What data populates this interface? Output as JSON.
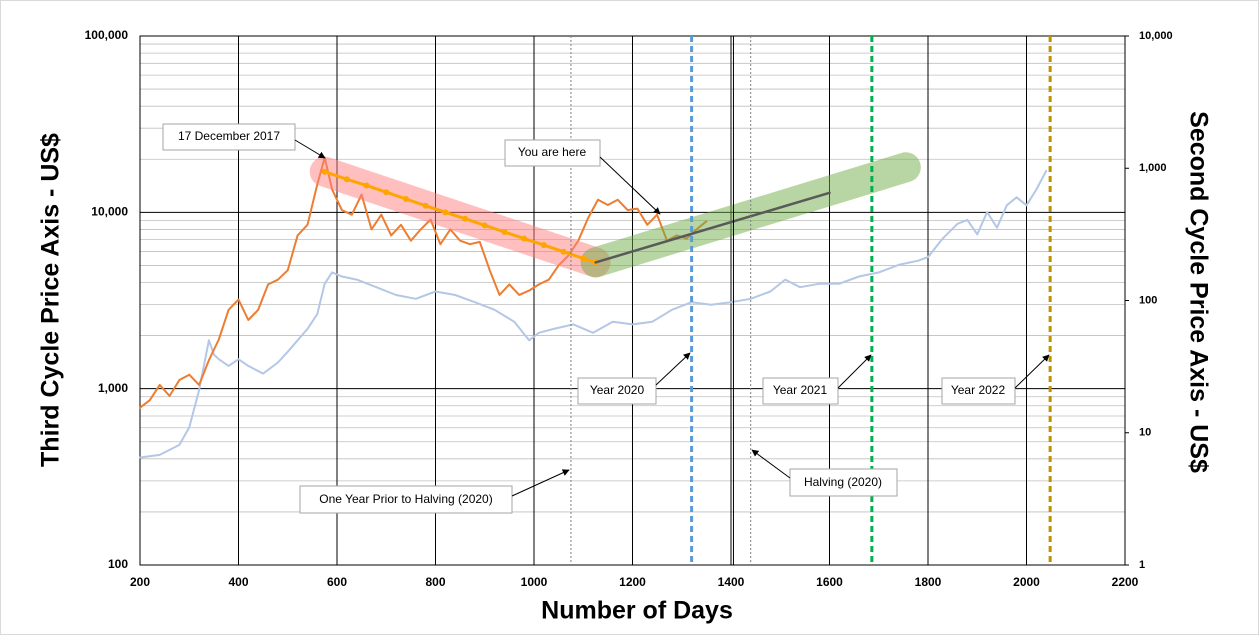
{
  "chart_data": {
    "type": "line",
    "xlabel": "Number of Days",
    "ylabel": "Third Cycle Price Axis - US$",
    "y2label": "Second Cycle Price Axis - US$",
    "xlim": [
      200,
      2200
    ],
    "xticks": [
      200,
      400,
      600,
      800,
      1000,
      1200,
      1400,
      1600,
      1800,
      2000,
      2200
    ],
    "ylim": [
      100,
      100000
    ],
    "yticks": [
      100,
      {
        "value": 1000,
        "label": "1,000"
      },
      {
        "value": 10000,
        "label": "10,000"
      },
      {
        "value": 100000,
        "label": "100,000"
      }
    ],
    "y2lim": [
      1,
      10000
    ],
    "y2ticks": [
      1,
      10,
      100,
      {
        "value": 1000,
        "label": "1,000"
      },
      {
        "value": 10000,
        "label": "10,000"
      }
    ],
    "yscale": "log",
    "y2scale": "log",
    "grid": true,
    "series": [
      {
        "color": "#b4c7e7",
        "axis": "y2",
        "x": [
          200,
          240,
          280,
          300,
          320,
          340,
          350,
          360,
          380,
          400,
          420,
          450,
          480,
          500,
          520,
          540,
          560,
          575,
          590,
          610,
          640,
          680,
          720,
          760,
          800,
          840,
          880,
          920,
          960,
          990,
          1010,
          1040,
          1080,
          1120,
          1160,
          1200,
          1240,
          1280,
          1320,
          1360,
          1400,
          1440,
          1480,
          1510,
          1540,
          1580,
          1620,
          1660,
          1700,
          1740,
          1780,
          1800,
          1830,
          1860,
          1880,
          1900,
          1920,
          1940,
          1960,
          1980,
          2000,
          2020,
          2040
        ],
        "values": [
          6.5,
          6.8,
          8.1,
          11,
          21,
          50,
          39,
          36,
          32,
          36,
          32,
          28,
          34,
          41,
          50,
          61,
          79,
          134,
          163,
          152,
          144,
          126,
          110,
          103,
          117,
          110,
          97,
          85,
          69,
          50,
          57,
          61,
          66,
          57,
          69,
          66,
          69,
          85,
          97,
          93,
          97,
          103,
          117,
          144,
          126,
          134,
          134,
          152,
          163,
          186,
          200,
          213,
          295,
          380,
          407,
          316,
          467,
          355,
          525,
          603,
          525,
          690,
          955
        ]
      },
      {
        "color": "#ed7d31",
        "x": [
          200,
          220,
          240,
          260,
          280,
          300,
          320,
          340,
          360,
          380,
          400,
          420,
          440,
          460,
          480,
          500,
          520,
          540,
          560,
          575,
          590,
          610,
          630,
          650,
          670,
          690,
          710,
          730,
          750,
          770,
          790,
          810,
          830,
          850,
          870,
          890,
          910,
          930,
          950,
          970,
          990,
          1010,
          1030,
          1050,
          1070,
          1090,
          1110,
          1130,
          1150,
          1170,
          1190,
          1210,
          1230,
          1250,
          1270,
          1290,
          1310,
          1330,
          1350
        ],
        "values": [
          780,
          860,
          1050,
          910,
          1120,
          1200,
          1050,
          1450,
          1900,
          2800,
          3200,
          2450,
          2800,
          3900,
          4150,
          4700,
          7400,
          8500,
          14400,
          20400,
          13500,
          10300,
          9700,
          12600,
          8000,
          9700,
          7400,
          8500,
          6900,
          8000,
          9100,
          6600,
          8000,
          6900,
          6600,
          6800,
          4700,
          3400,
          3900,
          3400,
          3600,
          3900,
          4150,
          5000,
          5700,
          6900,
          9300,
          11800,
          11000,
          11800,
          10300,
          10500,
          8500,
          9700,
          6900,
          7400,
          7100,
          8000,
          8900
        ]
      },
      {
        "color": "#ff8080",
        "line_width": 30,
        "opacity": 0.5,
        "x": [
          575,
          1125
        ],
        "values": [
          17000,
          5200
        ]
      },
      {
        "color": "#70ad47",
        "line_width": 30,
        "opacity": 0.5,
        "x": [
          1125,
          1755
        ],
        "values": [
          5200,
          18000
        ]
      },
      {
        "color": "#ffa500",
        "line_width": 3,
        "markers": true,
        "x": [
          575,
          620,
          660,
          700,
          740,
          780,
          820,
          860,
          900,
          940,
          980,
          1020,
          1060,
          1100,
          1125
        ],
        "values": [
          17000,
          15400,
          14200,
          13000,
          11900,
          10900,
          10000,
          9200,
          8440,
          7740,
          7100,
          6520,
          5980,
          5480,
          5200
        ]
      },
      {
        "color": "#595959",
        "line_width": 2.5,
        "x": [
          1125,
          1600
        ],
        "values": [
          5200,
          12900
        ]
      }
    ],
    "vlines": [
      {
        "x": 1075,
        "color": "#7f7f7f",
        "style": "dotted"
      },
      {
        "x": 1405,
        "color": "#000000",
        "style": "solid"
      },
      {
        "x": 1440,
        "color": "#7f7f7f",
        "style": "dotted"
      },
      {
        "x": 1320,
        "color": "#5b9bd5",
        "style": "dashed"
      },
      {
        "x": 1686,
        "color": "#00b050",
        "style": "dashed"
      },
      {
        "x": 2048,
        "color": "#bf9000",
        "style": "dashed"
      }
    ],
    "annotations": [
      "17 December 2017",
      "You are here",
      "Year 2020",
      "Year 2021",
      "Year 2022",
      "One Year Prior to Halving (2020)",
      "Halving (2020)"
    ]
  }
}
